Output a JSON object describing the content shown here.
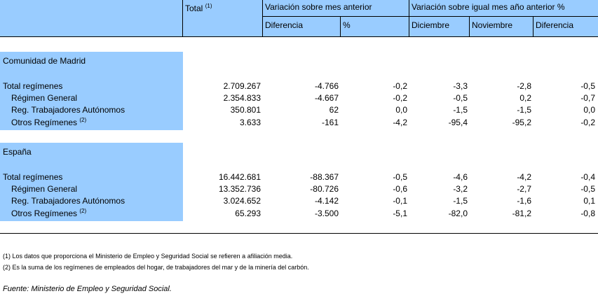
{
  "header": {
    "total_label": "Total",
    "total_note": "(1)",
    "group1": "Variación sobre mes anterior",
    "group2": "Variación sobre igual mes año anterior %",
    "sub": [
      "Diferencia",
      "%",
      "Diciembre",
      "Noviembre",
      "Diferencia"
    ]
  },
  "sections": [
    {
      "title": "Comunidad de Madrid",
      "rows": [
        {
          "label": "Total regímenes",
          "note": "",
          "indent": false,
          "values": [
            "2.709.267",
            "-4.766",
            "-0,2",
            "-3,3",
            "-2,8",
            "-0,5"
          ]
        },
        {
          "label": "Régimen General",
          "note": "",
          "indent": true,
          "values": [
            "2.354.833",
            "-4.667",
            "-0,2",
            "-0,5",
            "0,2",
            "-0,7"
          ]
        },
        {
          "label": "Reg. Trabajadores Autónomos",
          "note": "",
          "indent": true,
          "values": [
            "350.801",
            "62",
            "0,0",
            "-1,5",
            "-1,5",
            "0,0"
          ]
        },
        {
          "label": "Otros Regímenes",
          "note": "(2)",
          "indent": true,
          "values": [
            "3.633",
            "-161",
            "-4,2",
            "-95,4",
            "-95,2",
            "-0,2"
          ]
        }
      ]
    },
    {
      "title": "España",
      "rows": [
        {
          "label": "Total regímenes",
          "note": "",
          "indent": false,
          "values": [
            "16.442.681",
            "-88.367",
            "-0,5",
            "-4,6",
            "-4,2",
            "-0,4"
          ]
        },
        {
          "label": "Régimen General",
          "note": "",
          "indent": true,
          "values": [
            "13.352.736",
            "-80.726",
            "-0,6",
            "-3,2",
            "-2,7",
            "-0,5"
          ]
        },
        {
          "label": "Reg. Trabajadores Autónomos",
          "note": "",
          "indent": true,
          "values": [
            "3.024.652",
            "-4.142",
            "-0,1",
            "-1,5",
            "-1,6",
            "0,1"
          ]
        },
        {
          "label": "Otros Regímenes",
          "note": "(2)",
          "indent": true,
          "values": [
            "65.293",
            "-3.500",
            "-5,1",
            "-82,0",
            "-81,2",
            "-0,8"
          ]
        }
      ]
    }
  ],
  "notes": [
    "(1) Los datos que proporciona el Ministerio de Empleo y Seguridad Social se refieren a afiliación media.",
    "(2) Es la suma de los regímenes de empleados del hogar, de trabajadores del mar y de la minería del carbón."
  ],
  "source": "Fuente: Ministerio de Empleo y Seguridad Social.",
  "colors": {
    "header_bg": "#99ccff",
    "label_bg": "#99ccff",
    "rule": "#000000"
  }
}
